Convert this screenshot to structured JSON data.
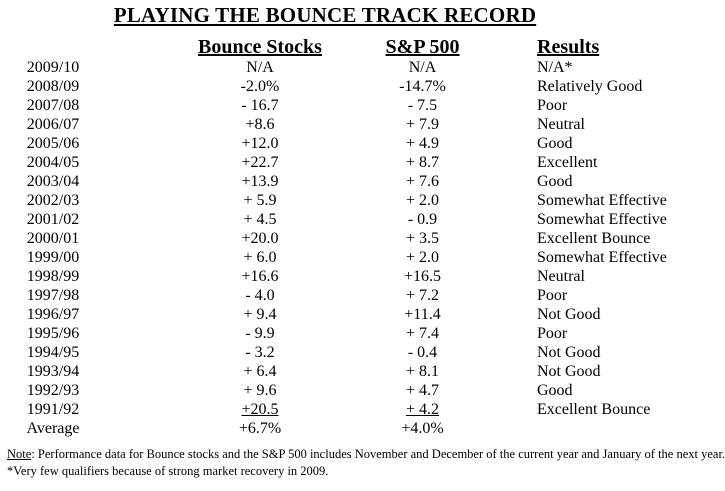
{
  "page": {
    "title": "PLAYING THE BOUNCE TRACK RECORD",
    "background_color": "#ffffff",
    "text_color": "#000000"
  },
  "table": {
    "columns": [
      {
        "key": "year",
        "label": ""
      },
      {
        "key": "bounce",
        "label": "Bounce Stocks"
      },
      {
        "key": "sp500",
        "label": "S&P 500"
      },
      {
        "key": "results",
        "label": "Results"
      }
    ],
    "rows": [
      {
        "year": "2009/10",
        "bounce": "N/A",
        "sp500": "N/A",
        "results": "N/A*"
      },
      {
        "year": "2008/09",
        "bounce": "-2.0%",
        "sp500": "-14.7%",
        "results": "Relatively Good"
      },
      {
        "year": "2007/08",
        "bounce": "- 16.7",
        "sp500": "- 7.5",
        "results": "Poor"
      },
      {
        "year": "2006/07",
        "bounce": "+8.6",
        "sp500": "+ 7.9",
        "results": "Neutral"
      },
      {
        "year": "2005/06",
        "bounce": "+12.0",
        "sp500": "+ 4.9",
        "results": "Good"
      },
      {
        "year": "2004/05",
        "bounce": "+22.7",
        "sp500": "+ 8.7",
        "results": "Excellent"
      },
      {
        "year": "2003/04",
        "bounce": "+13.9",
        "sp500": "+ 7.6",
        "results": "Good"
      },
      {
        "year": "2002/03",
        "bounce": "+ 5.9",
        "sp500": "+ 2.0",
        "results": "Somewhat Effective"
      },
      {
        "year": "2001/02",
        "bounce": "+ 4.5",
        "sp500": "- 0.9",
        "results": "Somewhat Effective"
      },
      {
        "year": "2000/01",
        "bounce": "+20.0",
        "sp500": "+ 3.5",
        "results": "Excellent Bounce"
      },
      {
        "year": "1999/00",
        "bounce": "+ 6.0",
        "sp500": "+ 2.0",
        "results": "Somewhat Effective"
      },
      {
        "year": "1998/99",
        "bounce": "+16.6",
        "sp500": "+16.5",
        "results": "Neutral"
      },
      {
        "year": "1997/98",
        "bounce": "- 4.0",
        "sp500": "+ 7.2",
        "results": "Poor"
      },
      {
        "year": "1996/97",
        "bounce": "+ 9.4",
        "sp500": "+11.4",
        "results": "Not Good"
      },
      {
        "year": "1995/96",
        "bounce": "- 9.9",
        "sp500": "+ 7.4",
        "results": "Poor"
      },
      {
        "year": "1994/95",
        "bounce": "- 3.2",
        "sp500": "- 0.4",
        "results": "Not Good"
      },
      {
        "year": "1993/94",
        "bounce": "+ 6.4",
        "sp500": "+ 8.1",
        "results": "Not Good"
      },
      {
        "year": "1992/93",
        "bounce": "+ 9.6",
        "sp500": "+ 4.7",
        "results": "Good"
      },
      {
        "year": "1991/92",
        "bounce": "+20.5",
        "sp500": "+ 4.2",
        "results": "Excellent Bounce",
        "underline_columns": [
          "bounce",
          "sp500"
        ]
      },
      {
        "year": "Average",
        "bounce": "+6.7%",
        "sp500": "+4.0%",
        "results": ""
      }
    ]
  },
  "footnotes": {
    "note_label": "Note",
    "note_body": ": Performance data for Bounce stocks and the S&P 500 includes November and December of the current year and January of the next year.",
    "asterisk_line": "*Very few qualifiers because of strong market recovery in 2009."
  }
}
